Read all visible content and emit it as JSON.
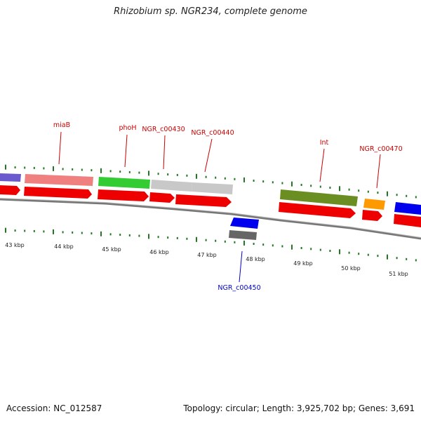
{
  "title": "Rhizobium sp. NGR234, complete genome",
  "footer": {
    "accession": "Accession: NC_012587",
    "summary": "Topology: circular; Length: 3,925,702 bp; Genes: 3,691"
  },
  "colors": {
    "forward_label": "#cc0000",
    "reverse_label": "#0000cc",
    "cds": "#ee0000",
    "backbone": "#777777",
    "tick": "#227722"
  },
  "kbp_labels": [
    {
      "kbp": 43,
      "text": "43 kbp"
    },
    {
      "kbp": 44,
      "text": "44 kbp"
    },
    {
      "kbp": 45,
      "text": "45 kbp"
    },
    {
      "kbp": 46,
      "text": "46 kbp"
    },
    {
      "kbp": 47,
      "text": "47 kbp"
    },
    {
      "kbp": 48,
      "text": "48 kbp"
    },
    {
      "kbp": 49,
      "text": "49 kbp"
    },
    {
      "kbp": 50,
      "text": "50 kbp"
    },
    {
      "kbp": 51,
      "text": "51 kbp"
    }
  ],
  "gene_labels": [
    {
      "name": "label-miaB",
      "text": "miaB",
      "strand": "forward"
    },
    {
      "name": "label-phoH",
      "text": "phoH",
      "strand": "forward"
    },
    {
      "name": "label-NGR_c00430",
      "text": "NGR_c00430",
      "strand": "forward"
    },
    {
      "name": "label-NGR_c00440",
      "text": "NGR_c00440",
      "strand": "forward"
    },
    {
      "name": "label-NGR_c00450",
      "text": "NGR_c00450",
      "strand": "reverse"
    },
    {
      "name": "label-int",
      "text": "Int",
      "strand": "forward"
    },
    {
      "name": "label-NGR_c00470",
      "text": "NGR_c00470",
      "strand": "forward"
    }
  ],
  "genes": [
    {
      "name": "gene-prev",
      "color": "#6a5acd",
      "strand": "forward"
    },
    {
      "name": "gene-miaB",
      "color": "#f08080",
      "strand": "forward"
    },
    {
      "name": "gene-phoH",
      "color": "#33cc33",
      "strand": "forward"
    },
    {
      "name": "gene-NGR_c00430",
      "color": "#bbbbbb",
      "strand": "forward"
    },
    {
      "name": "gene-NGR_c00440",
      "color": "#bbbbbb",
      "strand": "forward"
    },
    {
      "name": "gene-NGR_c00450",
      "color": "#0000ee",
      "strand": "reverse"
    },
    {
      "name": "gene-int",
      "color": "#6b8e23",
      "strand": "forward"
    },
    {
      "name": "gene-NGR_c00470",
      "color": "#ff9900",
      "strand": "forward"
    },
    {
      "name": "gene-next",
      "color": "#0000ee",
      "strand": "forward"
    }
  ]
}
